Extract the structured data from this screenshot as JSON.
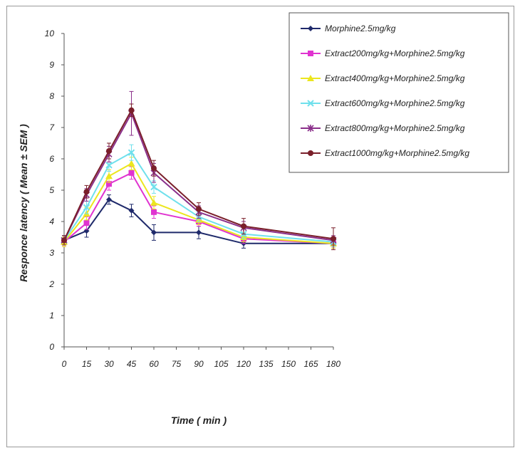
{
  "chart_data": {
    "type": "line",
    "xlabel": "Time ( min )",
    "ylabel": "Responce latency ( Mean ± SEM )",
    "x_ticks": [
      0,
      15,
      30,
      45,
      60,
      75,
      90,
      105,
      120,
      135,
      150,
      165,
      180
    ],
    "ylim": [
      0,
      10
    ],
    "y_ticks": [
      0,
      1,
      2,
      3,
      4,
      5,
      6,
      7,
      8,
      9,
      10
    ],
    "grid": false,
    "legend_position": "top-right",
    "x": [
      0,
      15,
      30,
      45,
      60,
      90,
      120,
      180
    ],
    "series": [
      {
        "name": "Morphine2.5mg/kg",
        "color": "#1f2a6b",
        "marker": "diamond",
        "values": [
          3.4,
          3.7,
          4.7,
          4.35,
          3.65,
          3.65,
          3.3,
          3.3
        ],
        "errors": [
          0.15,
          0.2,
          0.15,
          0.2,
          0.25,
          0.2,
          0.15,
          0.15
        ]
      },
      {
        "name": "Extract200mg/kg+Morphine2.5mg/kg",
        "color": "#e033d0",
        "marker": "square",
        "values": [
          3.35,
          3.95,
          5.2,
          5.55,
          4.3,
          4.0,
          3.45,
          3.3
        ],
        "errors": [
          0.15,
          0.2,
          0.2,
          0.2,
          0.2,
          0.15,
          0.15,
          0.15
        ]
      },
      {
        "name": "Extract400mg/kg+Morphine2.5mg/kg",
        "color": "#ece61e",
        "marker": "triangle",
        "values": [
          3.35,
          4.25,
          5.45,
          5.85,
          4.6,
          4.05,
          3.5,
          3.3
        ],
        "errors": [
          0.15,
          0.2,
          0.2,
          0.2,
          0.2,
          0.15,
          0.15,
          0.15
        ]
      },
      {
        "name": "Extract600mg/kg+Morphine2.5mg/kg",
        "color": "#6fe0ec",
        "marker": "x",
        "values": [
          3.4,
          4.45,
          5.8,
          6.2,
          5.1,
          4.15,
          3.6,
          3.35
        ],
        "errors": [
          0.15,
          0.2,
          0.2,
          0.25,
          0.2,
          0.15,
          0.15,
          0.15
        ]
      },
      {
        "name": "Extract800mg/kg+Morphine2.5mg/kg",
        "color": "#8a2f8a",
        "marker": "star",
        "values": [
          3.4,
          4.85,
          6.15,
          7.45,
          5.55,
          4.3,
          3.8,
          3.4
        ],
        "errors": [
          0.15,
          0.2,
          0.25,
          0.7,
          0.3,
          0.2,
          0.2,
          0.15
        ]
      },
      {
        "name": "Extract1000mg/kg+Morphine2.5mg/kg",
        "color": "#7a1f2a",
        "marker": "circle",
        "values": [
          3.4,
          4.95,
          6.25,
          7.55,
          5.7,
          4.4,
          3.85,
          3.45
        ],
        "errors": [
          0.15,
          0.2,
          0.25,
          0.2,
          0.25,
          0.2,
          0.25,
          0.35
        ]
      }
    ]
  }
}
